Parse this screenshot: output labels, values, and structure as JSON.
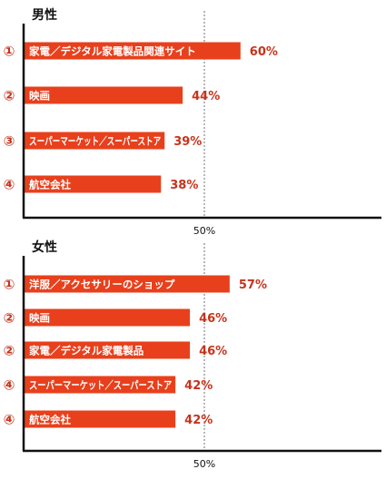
{
  "colors": {
    "bar": "#e8401c",
    "rank": "#c8321b",
    "value": "#c8321b",
    "axis": "#111111",
    "ref_line": "#999999"
  },
  "chart_data": [
    {
      "type": "bar",
      "orientation": "horizontal",
      "title": "男性",
      "unit": "%",
      "xlim": [
        0,
        100
      ],
      "reference_line": {
        "value": 50,
        "label": "50%"
      },
      "ranks": [
        "①",
        "②",
        "③",
        "④"
      ],
      "categories": [
        "家電／デジタル家電製品関連サイト",
        "映画",
        "スーパーマーケット／スーパーストア",
        "航空会社"
      ],
      "values": [
        60,
        44,
        39,
        38
      ],
      "value_labels": [
        "60%",
        "44%",
        "39%",
        "38%"
      ]
    },
    {
      "type": "bar",
      "orientation": "horizontal",
      "title": "女性",
      "unit": "%",
      "xlim": [
        0,
        100
      ],
      "reference_line": {
        "value": 50,
        "label": "50%"
      },
      "ranks": [
        "①",
        "②",
        "②",
        "④",
        "④"
      ],
      "categories": [
        "洋服／アクセサリーのショップ",
        "映画",
        "家電／デジタル家電製品",
        "スーパーマーケット／スーパーストア",
        "航空会社"
      ],
      "values": [
        57,
        46,
        46,
        42,
        42
      ],
      "value_labels": [
        "57%",
        "46%",
        "46%",
        "42%",
        "42%"
      ]
    }
  ]
}
